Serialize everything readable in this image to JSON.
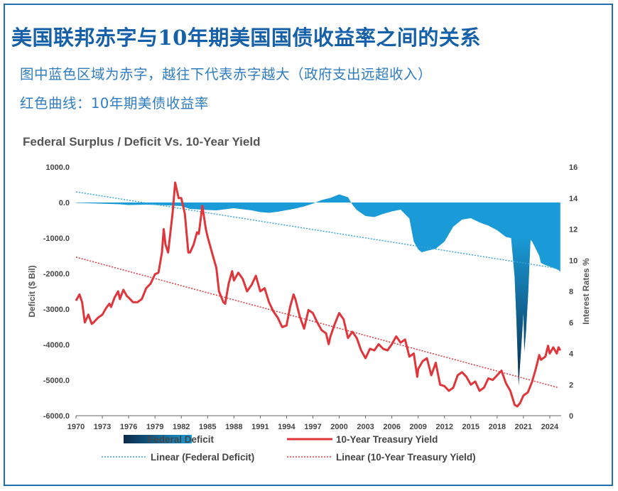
{
  "header": {
    "title": "美国联邦赤字与10年期美国国债收益率之间的关系",
    "subtitle1": "图中蓝色区域为赤字，越往下代表赤字越大（政府支出远超收入）",
    "subtitle2": "红色曲线：10年期美债收益率"
  },
  "chart_data": {
    "type": "area+line",
    "title": "Federal Surplus / Deficit Vs. 10-Year Yield",
    "ylabel_left": "Deficit ($ Bil)",
    "ylabel_right": "Interest Rates %",
    "xlim": [
      1970,
      2025.3
    ],
    "ylim_left": [
      -6000,
      1000
    ],
    "ylim_right": [
      0,
      16
    ],
    "x_ticks": [
      "1970",
      "1973",
      "1976",
      "1979",
      "1982",
      "1985",
      "1988",
      "1991",
      "1994",
      "1997",
      "2000",
      "2003",
      "2006",
      "2009",
      "2012",
      "2015",
      "2018",
      "2021",
      "2024"
    ],
    "y_left_ticks": [
      "1000.0",
      "0.0",
      "-1000.0",
      "-2000.0",
      "-3000.0",
      "-4000.0",
      "-5000.0",
      "-6000.0"
    ],
    "y_right_ticks": [
      "16",
      "14",
      "12",
      "10",
      "8",
      "6",
      "4",
      "2",
      "0"
    ],
    "colors": {
      "deficit": "#1a9ad6",
      "deficit_dark": "#0b2a4a",
      "yield": "#e0353b",
      "deficit_trend": "#3aa6dc",
      "yield_trend": "#e0353b"
    },
    "grid": false,
    "legend_position": "bottom",
    "legend": [
      "Federal Deficit",
      "10-Year Treasury Yield",
      "Linear (Federal Deficit)",
      "Linear (10-Year Treasury Yield)"
    ],
    "series": [
      {
        "name": "Federal Deficit",
        "x": [
          1970,
          1972,
          1975,
          1976,
          1978,
          1980,
          1982,
          1983,
          1985,
          1986,
          1988,
          1990,
          1991,
          1992,
          1993,
          1995,
          1996,
          1997,
          1998,
          1999,
          2000,
          2000.6,
          2001,
          2001.5,
          2002,
          2003,
          2004,
          2005,
          2006,
          2007,
          2008,
          2008.5,
          2009,
          2009.4,
          2010,
          2011,
          2012,
          2013,
          2013.8,
          2014,
          2015,
          2016,
          2017,
          2018,
          2019,
          2019.6,
          2020,
          2020.2,
          2020.45,
          2020.7,
          2021,
          2021.1,
          2021.3,
          2021.55,
          2021.8,
          2022,
          2022.4,
          2022.8,
          2023,
          2023.5,
          2024,
          2024.5,
          2025,
          2025.2
        ],
        "values": [
          -10,
          -25,
          -50,
          -70,
          -60,
          -75,
          -100,
          -180,
          -210,
          -220,
          -160,
          -220,
          -270,
          -290,
          -260,
          -170,
          -110,
          -30,
          70,
          130,
          230,
          180,
          150,
          -60,
          -210,
          -380,
          -410,
          -320,
          -250,
          -200,
          -450,
          -1100,
          -1320,
          -1400,
          -1360,
          -1300,
          -1100,
          -680,
          -520,
          -480,
          -440,
          -560,
          -650,
          -780,
          -970,
          -1000,
          -2100,
          -3300,
          -5150,
          -4250,
          -3100,
          -4200,
          -3600,
          -2500,
          -1050,
          -1100,
          -1300,
          -1500,
          -1700,
          -1760,
          -1800,
          -1850,
          -1900,
          -1950
        ]
      },
      {
        "name": "10-Year Treasury Yield",
        "x": [
          1970,
          1970.4,
          1970.7,
          1971,
          1971.4,
          1971.8,
          1972,
          1972.5,
          1973,
          1973.4,
          1973.8,
          1974,
          1974.4,
          1974.8,
          1975,
          1975.4,
          1975.8,
          1976,
          1976.5,
          1977,
          1977.5,
          1978,
          1978.5,
          1979,
          1979.4,
          1979.8,
          1980,
          1980.2,
          1980.5,
          1980.8,
          1981,
          1981.3,
          1981.7,
          1982,
          1982.4,
          1982.8,
          1983,
          1983.4,
          1983.8,
          1984,
          1984.4,
          1984.8,
          1985,
          1985.5,
          1986,
          1986.3,
          1986.8,
          1987,
          1987.4,
          1987.8,
          1988,
          1988.5,
          1989,
          1989.5,
          1990,
          1990.5,
          1991,
          1991.5,
          1992,
          1992.5,
          1993,
          1993.5,
          1994,
          1994.4,
          1994.8,
          1995,
          1995.5,
          1996,
          1996.5,
          1997,
          1997.5,
          1998,
          1998.5,
          1998.8,
          1999,
          1999.5,
          2000,
          2000.5,
          2001,
          2001.5,
          2002,
          2002.5,
          2003,
          2003.5,
          2004,
          2004.5,
          2005,
          2005.5,
          2006,
          2006.5,
          2007,
          2007.5,
          2008,
          2008.5,
          2008.9,
          2009,
          2009.5,
          2010,
          2010.5,
          2011,
          2011.5,
          2012,
          2012.5,
          2013,
          2013.5,
          2014,
          2014.5,
          2015,
          2015.5,
          2016,
          2016.5,
          2017,
          2017.5,
          2018,
          2018.5,
          2019,
          2019.5,
          2020,
          2020.3,
          2020.6,
          2021,
          2021.5,
          2022,
          2022.4,
          2022.8,
          2023,
          2023.5,
          2023.8,
          2024,
          2024.4,
          2024.8,
          2025,
          2025.2
        ],
        "values": [
          7.4,
          7.8,
          7.3,
          6.0,
          6.5,
          5.9,
          6.0,
          6.3,
          6.5,
          6.9,
          7.2,
          7.0,
          7.6,
          8.0,
          7.5,
          8.1,
          7.7,
          7.6,
          7.3,
          7.3,
          7.5,
          8.2,
          8.5,
          9.1,
          9.2,
          10.5,
          12.0,
          11.0,
          10.5,
          12.0,
          13.0,
          15.0,
          14.0,
          14.0,
          13.0,
          10.5,
          10.5,
          11.0,
          11.8,
          11.7,
          13.5,
          12.0,
          11.5,
          10.5,
          9.5,
          8.0,
          7.3,
          7.2,
          8.5,
          9.3,
          8.7,
          9.2,
          8.8,
          8.0,
          8.4,
          9.0,
          8.0,
          8.2,
          7.3,
          6.7,
          6.3,
          5.7,
          5.8,
          7.0,
          7.8,
          7.5,
          6.4,
          5.6,
          6.8,
          6.6,
          6.0,
          5.5,
          5.3,
          4.6,
          5.1,
          5.9,
          6.6,
          6.2,
          5.0,
          5.4,
          5.0,
          4.2,
          3.7,
          4.3,
          4.2,
          4.6,
          4.3,
          4.2,
          4.6,
          5.1,
          4.7,
          4.9,
          3.8,
          4.0,
          2.5,
          3.0,
          3.5,
          3.7,
          2.6,
          3.4,
          2.0,
          1.9,
          1.6,
          1.8,
          2.6,
          2.8,
          2.5,
          2.0,
          2.2,
          1.6,
          1.8,
          2.4,
          2.3,
          2.6,
          2.9,
          2.1,
          1.6,
          0.7,
          0.6,
          0.8,
          1.3,
          1.5,
          2.2,
          3.0,
          3.9,
          3.6,
          3.8,
          4.5,
          4.0,
          4.4,
          4.0,
          4.4,
          4.2
        ]
      }
    ],
    "trendlines": {
      "deficit": {
        "x": [
          1970,
          2025
        ],
        "values": [
          300,
          -1860
        ]
      },
      "yield": {
        "x": [
          1970,
          2025
        ],
        "values": [
          10.2,
          1.8
        ]
      }
    }
  }
}
